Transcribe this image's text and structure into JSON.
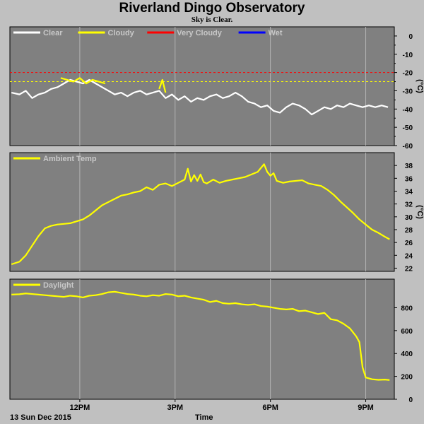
{
  "header": {
    "title": "Riverland Dingo Observatory",
    "subtitle": "Sky is Clear."
  },
  "footer": {
    "date": "13 Sun Dec 2015",
    "xlabel": "Time"
  },
  "colors": {
    "plot_bg": "#808080",
    "page_bg": "#c0c0c0",
    "grid": "#b4b4b4",
    "clear": "#ffffff",
    "cloudy": "#ffff00",
    "very_cloudy": "#ff0000",
    "wet": "#0000ff",
    "ambient": "#ffff00",
    "daylight": "#ffff00"
  },
  "chart_data": [
    {
      "type": "line",
      "id": "sky",
      "legend": [
        "Clear",
        "Cloudy",
        "Very Cloudy",
        "Wet"
      ],
      "legend_placement": "top-left",
      "ylabel": "(°C)",
      "ylim": [
        -60,
        5
      ],
      "yticks": [
        0,
        -10,
        -20,
        -30,
        -40,
        -50,
        -60
      ],
      "thresholds": [
        {
          "name": "Very Cloudy",
          "value": -20
        },
        {
          "name": "Cloudy",
          "value": -25
        }
      ],
      "xlim": [
        9.8,
        21.9
      ],
      "xticks": [
        {
          "x": 12,
          "label": "12PM"
        },
        {
          "x": 15,
          "label": "3PM"
        },
        {
          "x": 18,
          "label": "6PM"
        },
        {
          "x": 21,
          "label": "9PM"
        }
      ],
      "grid": true,
      "series": [
        {
          "name": "Clear",
          "x": [
            9.85,
            10.1,
            10.3,
            10.5,
            10.7,
            10.9,
            11.1,
            11.3,
            11.5,
            11.7,
            11.9,
            12.1,
            12.3,
            12.5,
            12.7,
            12.9,
            13.1,
            13.3,
            13.5,
            13.7,
            13.9,
            14.1,
            14.3,
            14.5,
            14.7,
            14.9,
            15.1,
            15.3,
            15.5,
            15.7,
            15.9,
            16.1,
            16.3,
            16.5,
            16.7,
            16.9,
            17.1,
            17.3,
            17.5,
            17.7,
            17.9,
            18.1,
            18.3,
            18.5,
            18.7,
            18.9,
            19.1,
            19.3,
            19.5,
            19.7,
            19.9,
            20.1,
            20.3,
            20.5,
            20.7,
            20.9,
            21.1,
            21.3,
            21.5,
            21.7
          ],
          "y": [
            -31,
            -32,
            -30,
            -34,
            -32,
            -31,
            -29,
            -28,
            -26,
            -24,
            -25,
            -26,
            -24,
            -26,
            -28,
            -30,
            -32,
            -31,
            -33,
            -31,
            -30,
            -32,
            -31,
            -30,
            -34,
            -32,
            -35,
            -33,
            -36,
            -34,
            -35,
            -33,
            -32,
            -34,
            -33,
            -31,
            -33,
            -36,
            -37,
            -39,
            -38,
            -41,
            -42,
            -39,
            -37,
            -38,
            -40,
            -43,
            -41,
            -39,
            -40,
            -38,
            -39,
            -37,
            -38,
            -39,
            -38,
            -39,
            -38,
            -39
          ]
        },
        {
          "name": "Cloudy",
          "x": [
            11.4,
            11.6,
            11.8,
            12.0,
            12.2,
            12.4,
            12.6,
            12.8,
            14.5,
            14.6,
            14.7
          ],
          "y": [
            -23,
            -24,
            -25,
            -23,
            -26,
            -24,
            -25,
            -26,
            -29,
            -24,
            -31
          ]
        }
      ]
    },
    {
      "type": "line",
      "id": "ambient",
      "legend": [
        "Ambient Temp"
      ],
      "legend_placement": "top-left",
      "ylabel": "(°C)",
      "ylim": [
        21.5,
        40
      ],
      "yticks": [
        22,
        24,
        26,
        28,
        30,
        32,
        34,
        36,
        38
      ],
      "xlim": [
        9.8,
        21.9
      ],
      "xticks": [
        {
          "x": 12,
          "label": "12PM"
        },
        {
          "x": 15,
          "label": "3PM"
        },
        {
          "x": 18,
          "label": "6PM"
        },
        {
          "x": 21,
          "label": "9PM"
        }
      ],
      "grid": true,
      "series": [
        {
          "name": "Ambient Temp",
          "x": [
            9.85,
            10.1,
            10.3,
            10.5,
            10.7,
            10.9,
            11.1,
            11.3,
            11.5,
            11.7,
            11.9,
            12.1,
            12.3,
            12.5,
            12.7,
            12.9,
            13.1,
            13.3,
            13.5,
            13.7,
            13.9,
            14.1,
            14.3,
            14.5,
            14.7,
            14.9,
            15.1,
            15.3,
            15.4,
            15.5,
            15.6,
            15.7,
            15.8,
            15.9,
            16.0,
            16.2,
            16.4,
            16.6,
            16.8,
            17.0,
            17.2,
            17.4,
            17.6,
            17.8,
            17.9,
            18.0,
            18.1,
            18.2,
            18.4,
            18.6,
            18.8,
            19.0,
            19.2,
            19.4,
            19.6,
            19.8,
            20.0,
            20.2,
            20.4,
            20.6,
            20.8,
            21.0,
            21.2,
            21.4,
            21.6,
            21.75
          ],
          "y": [
            22.6,
            23.0,
            24.0,
            25.5,
            27.0,
            28.2,
            28.6,
            28.8,
            28.9,
            29.0,
            29.3,
            29.6,
            30.2,
            31.0,
            31.8,
            32.3,
            32.8,
            33.3,
            33.5,
            33.8,
            34.0,
            34.6,
            34.2,
            35.0,
            35.2,
            34.8,
            35.3,
            35.8,
            37.5,
            35.5,
            36.5,
            35.6,
            36.6,
            35.4,
            35.2,
            35.8,
            35.3,
            35.6,
            35.8,
            36.0,
            36.2,
            36.6,
            37.0,
            38.2,
            37.0,
            36.4,
            36.8,
            35.6,
            35.3,
            35.5,
            35.6,
            35.7,
            35.2,
            35.0,
            34.8,
            34.2,
            33.4,
            32.4,
            31.5,
            30.6,
            29.6,
            28.8,
            28.0,
            27.5,
            26.9,
            26.5
          ]
        }
      ]
    },
    {
      "type": "line",
      "id": "daylight",
      "legend": [
        "Daylight"
      ],
      "legend_placement": "top-left",
      "ylabel": "",
      "ylim": [
        0,
        1050
      ],
      "yticks": [
        0,
        200,
        400,
        600,
        800
      ],
      "xlim": [
        9.8,
        21.9
      ],
      "xticks": [
        {
          "x": 12,
          "label": "12PM"
        },
        {
          "x": 15,
          "label": "3PM"
        },
        {
          "x": 18,
          "label": "6PM"
        },
        {
          "x": 21,
          "label": "9PM"
        }
      ],
      "grid": true,
      "series": [
        {
          "name": "Daylight",
          "x": [
            9.85,
            10.1,
            10.3,
            10.5,
            10.7,
            10.9,
            11.1,
            11.3,
            11.5,
            11.7,
            11.9,
            12.1,
            12.3,
            12.5,
            12.7,
            12.9,
            13.1,
            13.3,
            13.5,
            13.7,
            13.9,
            14.1,
            14.3,
            14.5,
            14.7,
            14.9,
            15.1,
            15.3,
            15.5,
            15.7,
            15.9,
            16.1,
            16.3,
            16.5,
            16.7,
            16.9,
            17.1,
            17.3,
            17.5,
            17.7,
            17.9,
            18.1,
            18.3,
            18.5,
            18.7,
            18.9,
            19.1,
            19.3,
            19.5,
            19.7,
            19.9,
            20.1,
            20.3,
            20.5,
            20.7,
            20.8,
            20.9,
            21.0,
            21.2,
            21.4,
            21.6,
            21.75
          ],
          "y": [
            915,
            918,
            925,
            920,
            915,
            910,
            905,
            900,
            895,
            905,
            900,
            890,
            905,
            910,
            920,
            935,
            940,
            930,
            920,
            915,
            905,
            900,
            910,
            905,
            920,
            915,
            900,
            905,
            890,
            880,
            870,
            850,
            860,
            840,
            835,
            840,
            830,
            825,
            830,
            815,
            810,
            800,
            790,
            785,
            790,
            770,
            775,
            760,
            745,
            755,
            700,
            690,
            660,
            620,
            550,
            500,
            280,
            190,
            175,
            170,
            172,
            168
          ]
        }
      ]
    }
  ]
}
